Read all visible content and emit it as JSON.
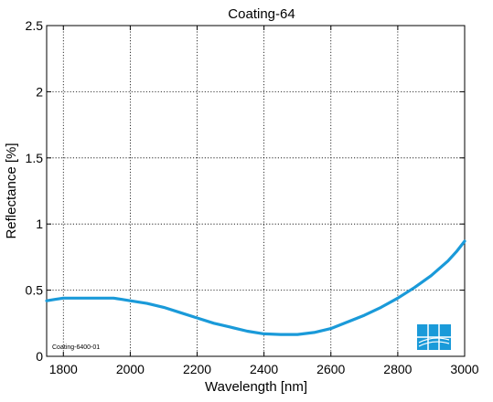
{
  "chart_data": {
    "type": "line",
    "title": "Coating-64",
    "xlabel": "Wavelength [nm]",
    "ylabel": "Reflectance [%]",
    "xlim": [
      1750,
      3000
    ],
    "ylim": [
      0,
      2.5
    ],
    "xticks": [
      1800,
      2000,
      2200,
      2400,
      2600,
      2800,
      3000
    ],
    "xtick_labels": [
      "1800",
      "2000",
      "2200",
      "2400",
      "2600",
      "2800",
      "3000"
    ],
    "yticks": [
      0,
      0.5,
      1,
      1.5,
      2,
      2.5
    ],
    "ytick_labels": [
      "0",
      "0.5",
      "1",
      "1.5",
      "2",
      "2.5"
    ],
    "grid": true,
    "line_color": "#1a9ad9",
    "series": [
      {
        "x": [
          1750,
          1775,
          1800,
          1850,
          1900,
          1950,
          1975,
          2000,
          2050,
          2100,
          2150,
          2200,
          2250,
          2300,
          2350,
          2400,
          2450,
          2500,
          2550,
          2600,
          2650,
          2700,
          2750,
          2800,
          2850,
          2900,
          2950,
          2975,
          3000
        ],
        "y": [
          0.42,
          0.43,
          0.44,
          0.44,
          0.44,
          0.44,
          0.43,
          0.42,
          0.4,
          0.37,
          0.33,
          0.29,
          0.25,
          0.22,
          0.19,
          0.17,
          0.165,
          0.165,
          0.18,
          0.21,
          0.26,
          0.31,
          0.37,
          0.44,
          0.52,
          0.61,
          0.72,
          0.79,
          0.87
        ]
      }
    ],
    "annotation": "Coating-6400-01",
    "logo": "company-logo-icon"
  }
}
